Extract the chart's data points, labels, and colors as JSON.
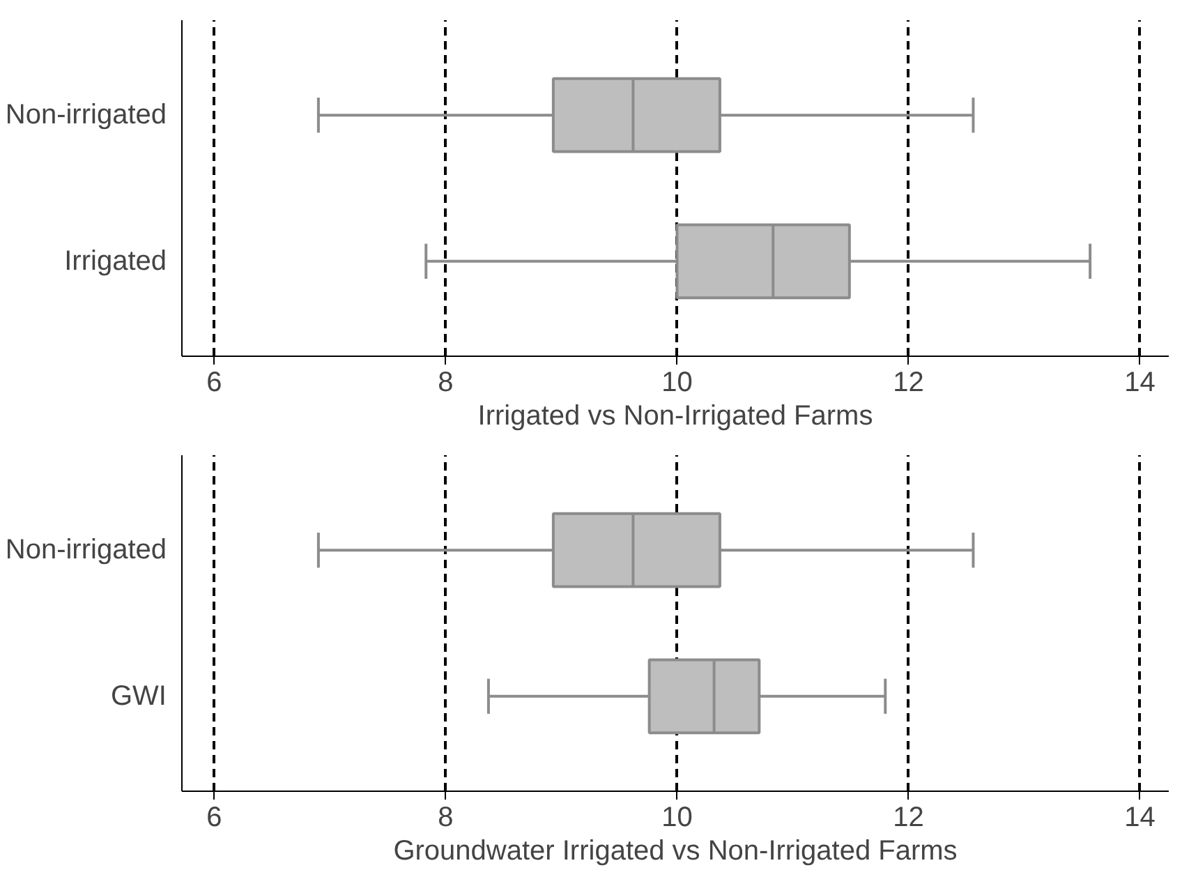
{
  "chart_data": [
    {
      "type": "box",
      "xlabel": "Irrigated vs Non-Irrigated Farms",
      "categories": [
        "Non-irrigated",
        "Irrigated"
      ],
      "orientation": "horizontal",
      "color": "#bebebe",
      "grid": "x",
      "xlim": [
        5.72,
        14.25
      ],
      "xticks": [
        6,
        8,
        10,
        12,
        14
      ],
      "boxes": [
        {
          "low": 6.9,
          "q1": 8.93,
          "median": 9.62,
          "q3": 10.37,
          "high": 12.56
        },
        {
          "low": 7.83,
          "q1": 10.0,
          "median": 10.83,
          "q3": 11.49,
          "high": 13.57
        }
      ]
    },
    {
      "type": "box",
      "xlabel": "Groundwater Irrigated vs Non-Irrigated Farms",
      "categories": [
        "Non-irrigated",
        "GWI"
      ],
      "orientation": "horizontal",
      "color": "#bebebe",
      "grid": "x",
      "xlim": [
        5.72,
        14.25
      ],
      "xticks": [
        6,
        8,
        10,
        12,
        14
      ],
      "boxes": [
        {
          "low": 6.9,
          "q1": 8.93,
          "median": 9.62,
          "q3": 10.37,
          "high": 12.56
        },
        {
          "low": 8.37,
          "q1": 9.76,
          "median": 10.32,
          "q3": 10.71,
          "high": 11.8
        }
      ]
    }
  ]
}
